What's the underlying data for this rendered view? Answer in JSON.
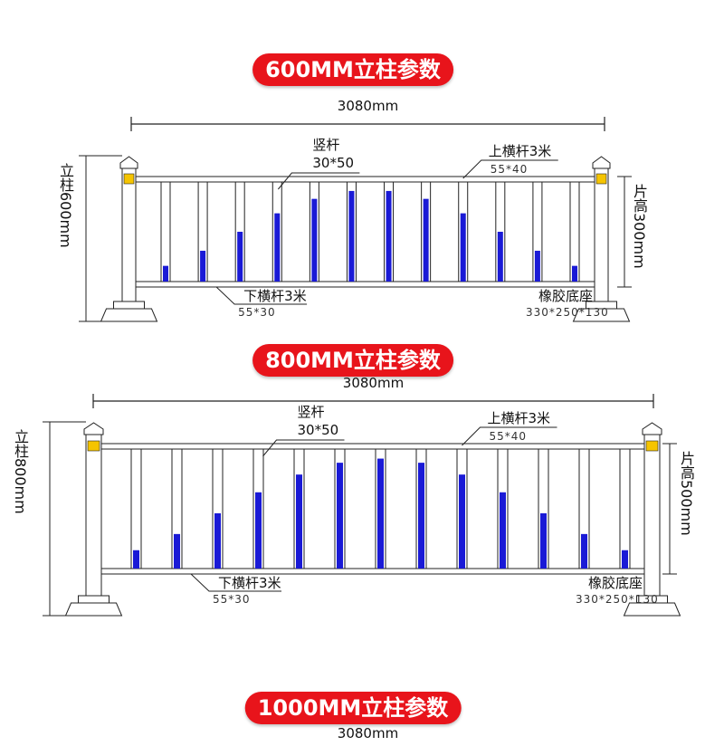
{
  "sections": [
    {
      "title": "600MM立柱参数",
      "width": "3080mm",
      "post": "立柱600mm",
      "vertical_bar": "竖杆",
      "vertical_size": "30*50",
      "top_rail": "上横杆3米",
      "top_size": "55*40",
      "panel_height": "片高300mm",
      "bottom_rail": "下横杆3米",
      "bottom_size": "55*30",
      "base": "橡胶底座",
      "base_size": "330*250*130"
    },
    {
      "title": "800MM立柱参数",
      "width": "3080mm",
      "post": "立柱800mm",
      "vertical_bar": "竖杆",
      "vertical_size": "30*50",
      "top_rail": "上横杆3米",
      "top_size": "55*40",
      "panel_height": "片高500mm",
      "bottom_rail": "下横杆3米",
      "bottom_size": "55*30",
      "base": "橡胶底座",
      "base_size": "330*250*130"
    },
    {
      "title": "1000MM立柱参数",
      "width": "3080mm"
    }
  ]
}
